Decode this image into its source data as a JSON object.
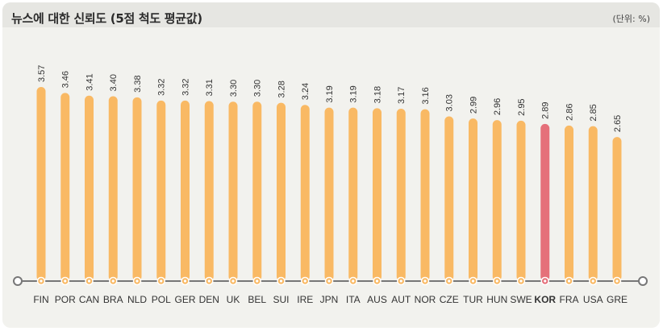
{
  "header": {
    "title": "뉴스에 대한 신뢰도 (5점 척도 평균값)",
    "unit": "(단위: %)"
  },
  "colors": {
    "bar": "#f9b964",
    "highlight_bar": "#e5707a",
    "axis": "#777777"
  },
  "chart_data": {
    "type": "bar",
    "title": "뉴스에 대한 신뢰도 (5점 척도 평균값)",
    "unit": "(단위: %)",
    "highlight": "KOR",
    "categories": [
      "FIN",
      "POR",
      "CAN",
      "BRA",
      "NLD",
      "POL",
      "GER",
      "DEN",
      "UK",
      "BEL",
      "SUI",
      "IRE",
      "JPN",
      "ITA",
      "AUS",
      "AUT",
      "NOR",
      "CZE",
      "TUR",
      "HUN",
      "SWE",
      "KOR",
      "FRA",
      "USA",
      "GRE"
    ],
    "values": [
      3.57,
      3.46,
      3.41,
      3.4,
      3.38,
      3.32,
      3.32,
      3.31,
      3.3,
      3.3,
      3.28,
      3.24,
      3.19,
      3.19,
      3.18,
      3.17,
      3.16,
      3.03,
      2.99,
      2.96,
      2.95,
      2.89,
      2.86,
      2.85,
      2.65
    ],
    "value_labels": [
      "3.57",
      "3.46",
      "3.41",
      "3.40",
      "3.38",
      "3.32",
      "3.32",
      "3.31",
      "3.30",
      "3.30",
      "3.28",
      "3.24",
      "3.19",
      "3.19",
      "3.18",
      "3.17",
      "3.16",
      "3.03",
      "2.99",
      "2.96",
      "2.95",
      "2.89",
      "2.86",
      "2.85",
      "2.65"
    ],
    "ylim": [
      0,
      3.57
    ],
    "grid": false,
    "legend": "none"
  }
}
